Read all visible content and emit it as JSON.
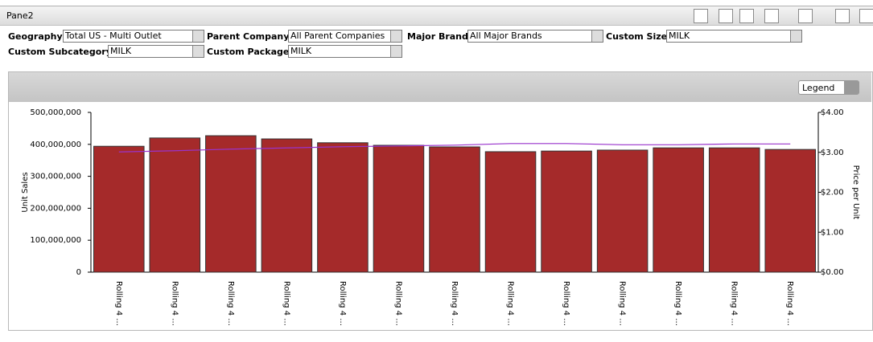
{
  "pane": {
    "title": "Pane2",
    "filters": [
      {
        "label": "Geography",
        "value": "Total US - Multi Outlet"
      },
      {
        "label": "Parent Company",
        "value": "All Parent Companies"
      },
      {
        "label": "Major Brand",
        "value": "All Major Brands"
      },
      {
        "label": "Custom Size",
        "value": "MILK"
      },
      {
        "label": "Custom Subcategory",
        "value": "MILK"
      },
      {
        "label": "Custom Package",
        "value": "MILK"
      }
    ],
    "legend_button": "Legend"
  },
  "chart_data": {
    "type": "bar",
    "y_label": "Unit Sales",
    "y2_label": "Price per Unit",
    "categories": [
      "Rolling 4 ...",
      "Rolling 4 ...",
      "Rolling 4 ...",
      "Rolling 4 ...",
      "Rolling 4 ...",
      "Rolling 4 ...",
      "Rolling 4 ...",
      "Rolling 4 ...",
      "Rolling 4 ...",
      "Rolling 4 ...",
      "Rolling 4 ...",
      "Rolling 4 ...",
      "Rolling 4 ..."
    ],
    "series": [
      {
        "name": "Unit Sales",
        "type": "bar",
        "color": "#a52a2a",
        "values": [
          394000000,
          420000000,
          427000000,
          417000000,
          405000000,
          397000000,
          392000000,
          377000000,
          379000000,
          382000000,
          389000000,
          389000000,
          384000000
        ]
      },
      {
        "name": "Price per Unit",
        "type": "line",
        "axis": "y2",
        "color": "#9933cc",
        "values": [
          3.01,
          3.04,
          3.08,
          3.11,
          3.14,
          3.16,
          3.18,
          3.22,
          3.22,
          3.19,
          3.19,
          3.21,
          3.21
        ]
      }
    ],
    "ylim": [
      0,
      500000000
    ],
    "yticks": [
      0,
      {
        "value": 100000000,
        "label": "100,000,000"
      },
      {
        "value": 200000000,
        "label": "200,000,000"
      },
      {
        "value": 300000000,
        "label": "300,000,000"
      },
      {
        "value": 400000000,
        "label": "400,000,000"
      },
      {
        "value": 500000000,
        "label": "500,000,000"
      }
    ],
    "y2lim": [
      0,
      4
    ],
    "y2ticks": [
      {
        "value": 0,
        "label": "$0.00"
      },
      {
        "value": 1,
        "label": "$1.00"
      },
      {
        "value": 2,
        "label": "$2.00"
      },
      {
        "value": 3,
        "label": "$3.00"
      },
      {
        "value": 4,
        "label": "$4.00"
      }
    ]
  }
}
